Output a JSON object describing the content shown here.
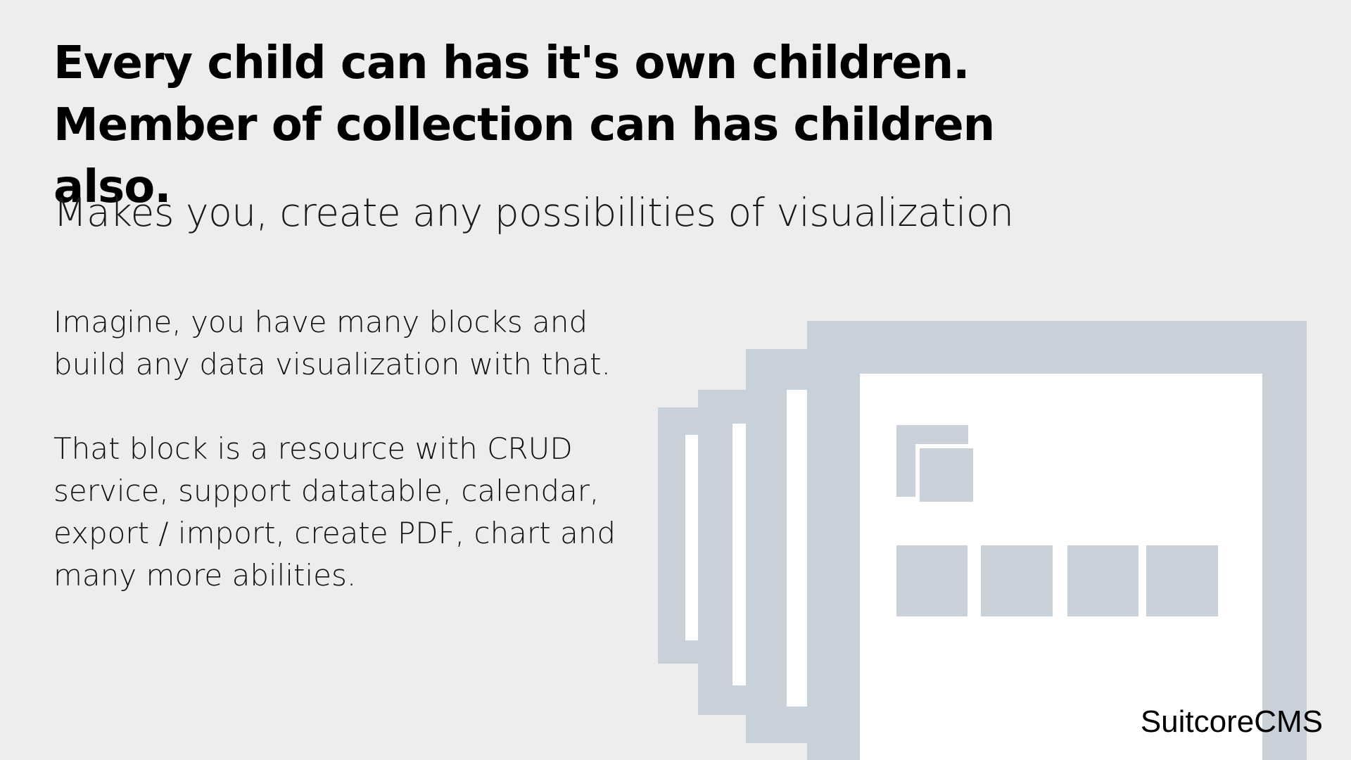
{
  "headline": {
    "line1": "Every child can has it's own children.",
    "line2": "Member of collection can has children also."
  },
  "subtitle": "Makes you, create any possibilities of visualization",
  "paragraph1": {
    "lines": [
      "Imagine, you have many blocks and",
      "build any data visualization with  that."
    ]
  },
  "paragraph2": {
    "lines": [
      "That block is a resource with CRUD",
      "service, support datatable, calendar,",
      "export / import, create PDF, chart and",
      "many more abilities."
    ]
  },
  "brand": "SuitcoreCMS",
  "colors": {
    "background": "#ededed",
    "block": "#c8d0da",
    "panel": "#ffffff",
    "text": "#000000"
  }
}
